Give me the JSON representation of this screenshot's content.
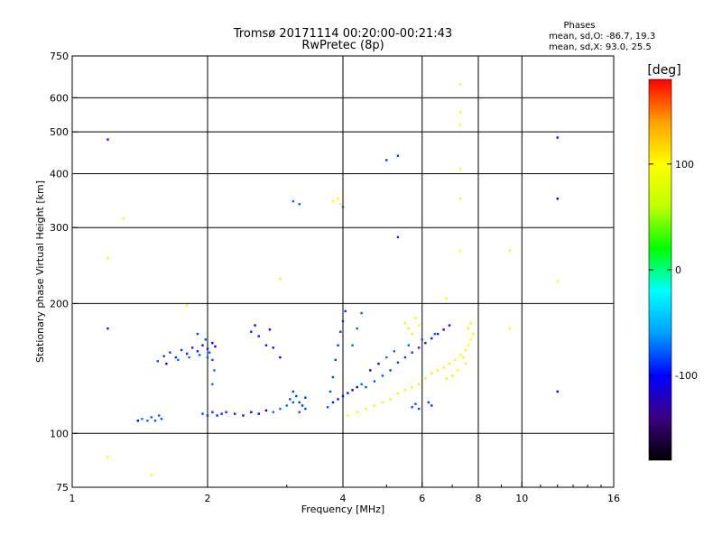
{
  "chart_data": {
    "type": "scatter",
    "title": "Tromsø 20171114 00:20:00-00:21:43",
    "subtitle": "RwPretec (8p)",
    "xlabel": "Frequency [MHz]",
    "ylabel": "Stationary phase Virtual Height [km]",
    "x_scale": "log",
    "y_scale": "log",
    "xlim": [
      1,
      16
    ],
    "ylim": [
      75,
      750
    ],
    "x_ticks": [
      1,
      2,
      4,
      6,
      8,
      10,
      16
    ],
    "x_tick_labels": [
      "1",
      "2",
      "4",
      "6",
      "8",
      "10",
      "16"
    ],
    "x_grid": [
      2,
      4,
      6,
      8,
      10
    ],
    "y_ticks": [
      75,
      100,
      200,
      300,
      400,
      500,
      600,
      750
    ],
    "y_tick_labels": [
      "75",
      "100",
      "200",
      "300",
      "400",
      "500",
      "600",
      "750"
    ],
    "y_grid": [
      100,
      200,
      300,
      400,
      500,
      600
    ],
    "grid": true,
    "phases_box": {
      "title": "Phases",
      "line1": "mean, sd,O: -86.7, 19.3",
      "line2": "mean, sd,X:  93.0, 25.5"
    },
    "colorbar": {
      "unit_label": "[deg]",
      "range": [
        -180,
        180
      ],
      "ticks": [
        100,
        0,
        -100
      ],
      "tick_labels": [
        "100",
        "0",
        "-100"
      ],
      "colormap": [
        "#000000",
        "#3b0080",
        "#0000ff",
        "#00a0ff",
        "#00ffff",
        "#00ff00",
        "#c0ff00",
        "#ffff00",
        "#ffa000",
        "#ff0000"
      ]
    },
    "series": [
      {
        "points": [
          [
            1.4,
            107
          ],
          [
            1.43,
            108
          ],
          [
            1.47,
            107
          ],
          [
            1.5,
            109
          ],
          [
            1.53,
            107
          ],
          [
            1.56,
            110
          ],
          [
            1.58,
            108
          ],
          [
            1.55,
            147
          ],
          [
            1.6,
            151
          ],
          [
            1.65,
            154
          ],
          [
            1.7,
            150
          ],
          [
            1.75,
            156
          ],
          [
            1.8,
            153
          ],
          [
            1.85,
            158
          ],
          [
            1.9,
            155
          ],
          [
            1.95,
            160
          ],
          [
            2.0,
            157
          ],
          [
            2.05,
            162
          ],
          [
            2.08,
            159
          ],
          [
            1.62,
            145
          ],
          [
            1.72,
            148
          ],
          [
            1.82,
            150
          ],
          [
            1.92,
            152
          ],
          [
            2.02,
            154
          ],
          [
            2.0,
            150
          ],
          [
            2.05,
            148
          ],
          [
            1.98,
            165
          ],
          [
            1.9,
            170
          ],
          [
            1.95,
            111
          ],
          [
            2.0,
            110
          ],
          [
            2.05,
            112
          ],
          [
            2.1,
            110
          ],
          [
            2.15,
            111
          ],
          [
            2.2,
            112
          ],
          [
            2.3,
            111
          ],
          [
            2.4,
            110
          ],
          [
            2.5,
            112
          ],
          [
            2.6,
            111
          ],
          [
            2.7,
            113
          ],
          [
            2.8,
            112
          ],
          [
            2.9,
            114
          ],
          [
            3.0,
            116
          ],
          [
            3.1,
            118
          ],
          [
            3.2,
            112
          ],
          [
            3.3,
            114
          ],
          [
            3.05,
            120
          ],
          [
            3.1,
            125
          ],
          [
            3.15,
            122
          ],
          [
            3.2,
            118
          ],
          [
            3.25,
            116
          ],
          [
            3.3,
            121
          ],
          [
            2.5,
            172
          ],
          [
            2.6,
            168
          ],
          [
            2.7,
            160
          ],
          [
            2.8,
            158
          ],
          [
            2.9,
            150
          ],
          [
            2.55,
            178
          ],
          [
            2.75,
            174
          ],
          [
            2.05,
            130
          ],
          [
            2.07,
            140
          ],
          [
            3.1,
            345
          ],
          [
            3.2,
            340
          ],
          [
            4.0,
            335
          ],
          [
            3.7,
            115
          ],
          [
            3.75,
            125
          ],
          [
            3.8,
            135
          ],
          [
            3.85,
            148
          ],
          [
            3.9,
            160
          ],
          [
            3.95,
            172
          ],
          [
            4.0,
            182
          ],
          [
            4.05,
            192
          ],
          [
            3.8,
            118
          ],
          [
            3.9,
            120
          ],
          [
            4.0,
            122
          ],
          [
            4.1,
            124
          ],
          [
            4.2,
            126
          ],
          [
            4.3,
            128
          ],
          [
            4.4,
            130
          ],
          [
            4.2,
            160
          ],
          [
            4.3,
            175
          ],
          [
            4.4,
            190
          ],
          [
            4.5,
            128
          ],
          [
            4.7,
            132
          ],
          [
            4.9,
            136
          ],
          [
            5.1,
            140
          ],
          [
            5.3,
            146
          ],
          [
            5.5,
            150
          ],
          [
            5.7,
            154
          ],
          [
            5.9,
            158
          ],
          [
            6.1,
            162
          ],
          [
            6.3,
            166
          ],
          [
            6.5,
            170
          ],
          [
            6.7,
            174
          ],
          [
            6.9,
            178
          ],
          [
            4.6,
            140
          ],
          [
            4.8,
            145
          ],
          [
            5.0,
            150
          ],
          [
            5.2,
            155
          ],
          [
            5.6,
            160
          ],
          [
            6.0,
            165
          ],
          [
            6.4,
            170
          ],
          [
            5.7,
            115
          ],
          [
            5.8,
            117
          ],
          [
            5.9,
            114
          ],
          [
            6.2,
            118
          ],
          [
            6.3,
            116
          ],
          [
            5.0,
            430
          ],
          [
            5.3,
            440
          ],
          [
            5.3,
            285
          ],
          [
            1.2,
            175
          ],
          [
            1.2,
            480
          ],
          [
            12.0,
            485
          ],
          [
            12.0,
            350
          ],
          [
            12.0,
            125
          ]
        ]
      },
      {
        "points": [
          [
            1.8,
            198
          ],
          [
            2.9,
            228
          ],
          [
            1.2,
            255
          ],
          [
            1.3,
            315
          ],
          [
            3.8,
            345
          ],
          [
            3.9,
            350
          ],
          [
            3.95,
            340
          ],
          [
            1.2,
            88
          ],
          [
            1.5,
            80
          ],
          [
            4.1,
            110
          ],
          [
            4.3,
            112
          ],
          [
            4.5,
            114
          ],
          [
            4.7,
            116
          ],
          [
            4.9,
            118
          ],
          [
            5.1,
            120
          ],
          [
            5.3,
            124
          ],
          [
            5.5,
            126
          ],
          [
            5.7,
            128
          ],
          [
            5.9,
            130
          ],
          [
            6.1,
            134
          ],
          [
            6.3,
            138
          ],
          [
            6.5,
            140
          ],
          [
            6.7,
            142
          ],
          [
            6.9,
            145
          ],
          [
            7.1,
            148
          ],
          [
            7.3,
            152
          ],
          [
            7.5,
            156
          ],
          [
            7.6,
            160
          ],
          [
            7.7,
            165
          ],
          [
            7.8,
            170
          ],
          [
            7.2,
            140
          ],
          [
            7.4,
            150
          ],
          [
            7.6,
            175
          ],
          [
            7.7,
            180
          ],
          [
            7.5,
            145
          ],
          [
            7.0,
            136
          ],
          [
            6.8,
            134
          ],
          [
            5.5,
            180
          ],
          [
            5.6,
            175
          ],
          [
            5.7,
            170
          ],
          [
            5.8,
            185
          ],
          [
            5.9,
            178
          ],
          [
            7.3,
            645
          ],
          [
            7.3,
            555
          ],
          [
            7.3,
            520
          ],
          [
            7.3,
            410
          ],
          [
            7.3,
            350
          ],
          [
            7.3,
            265
          ],
          [
            9.4,
            265
          ],
          [
            12.0,
            225
          ],
          [
            9.4,
            175
          ],
          [
            6.8,
            205
          ]
        ]
      }
    ]
  }
}
